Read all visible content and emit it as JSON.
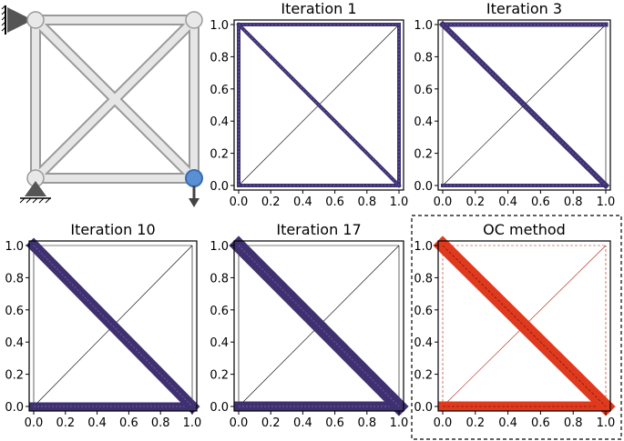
{
  "figure": {
    "colors": {
      "iteration_member": "#3f3170",
      "oc_member": "#e03a1e",
      "oc_frame": "#b02010",
      "frame_line": "#000000",
      "truss_tube": "#d9d9d9",
      "support": "#555555",
      "load_node": "#4a7fc8",
      "load_arrow": "#444444"
    },
    "schematic": {
      "description_icon": "truss-schematic-icon",
      "nodes": [
        [
          0,
          0
        ],
        [
          1,
          0
        ],
        [
          0,
          1
        ],
        [
          1,
          1
        ]
      ],
      "members": [
        [
          0,
          1
        ],
        [
          2,
          3
        ],
        [
          0,
          2
        ],
        [
          1,
          3
        ],
        [
          0,
          3
        ],
        [
          2,
          1
        ]
      ],
      "supports": [
        "wall-pin-top-left",
        "roller-bottom-left"
      ],
      "load_node": 1,
      "load_direction": "down"
    }
  },
  "chart_data": [
    {
      "type": "truss-topology",
      "title": "Iteration 1",
      "xlim": [
        0.0,
        1.0
      ],
      "ylim": [
        0.0,
        1.0
      ],
      "xticks": [
        "0.0",
        "0.2",
        "0.4",
        "0.6",
        "0.8",
        "1.0"
      ],
      "yticks": [
        "0.0",
        "0.2",
        "0.4",
        "0.6",
        "0.8",
        "1.0"
      ],
      "members": [
        {
          "name": "bottom",
          "from": [
            0,
            0
          ],
          "to": [
            1,
            0
          ],
          "thickness": 4
        },
        {
          "name": "top",
          "from": [
            0,
            1
          ],
          "to": [
            1,
            1
          ],
          "thickness": 4
        },
        {
          "name": "left",
          "from": [
            0,
            0
          ],
          "to": [
            0,
            1
          ],
          "thickness": 4
        },
        {
          "name": "right",
          "from": [
            1,
            0
          ],
          "to": [
            1,
            1
          ],
          "thickness": 4
        },
        {
          "name": "diag-down",
          "from": [
            0,
            1
          ],
          "to": [
            1,
            0
          ],
          "thickness": 4
        },
        {
          "name": "diag-up",
          "from": [
            0,
            0
          ],
          "to": [
            1,
            1
          ],
          "thickness": 0
        }
      ],
      "highlighted": false
    },
    {
      "type": "truss-topology",
      "title": "Iteration 3",
      "xlim": [
        0.0,
        1.0
      ],
      "ylim": [
        0.0,
        1.0
      ],
      "xticks": [
        "0.0",
        "0.2",
        "0.4",
        "0.6",
        "0.8",
        "1.0"
      ],
      "yticks": [
        "0.0",
        "0.2",
        "0.4",
        "0.6",
        "0.8",
        "1.0"
      ],
      "members": [
        {
          "name": "bottom",
          "from": [
            0,
            0
          ],
          "to": [
            1,
            0
          ],
          "thickness": 4
        },
        {
          "name": "top",
          "from": [
            0,
            1
          ],
          "to": [
            1,
            1
          ],
          "thickness": 5
        },
        {
          "name": "left",
          "from": [
            0,
            0
          ],
          "to": [
            0,
            1
          ],
          "thickness": 0
        },
        {
          "name": "right",
          "from": [
            1,
            0
          ],
          "to": [
            1,
            1
          ],
          "thickness": 0
        },
        {
          "name": "diag-down",
          "from": [
            0,
            1
          ],
          "to": [
            1,
            0
          ],
          "thickness": 6
        },
        {
          "name": "diag-up",
          "from": [
            0,
            0
          ],
          "to": [
            1,
            1
          ],
          "thickness": 0
        }
      ],
      "highlighted": false
    },
    {
      "type": "truss-topology",
      "title": "Iteration 10",
      "xlim": [
        0.0,
        1.0
      ],
      "ylim": [
        0.0,
        1.0
      ],
      "xticks": [
        "0.0",
        "0.2",
        "0.4",
        "0.6",
        "0.8",
        "1.0"
      ],
      "yticks": [
        "0.0",
        "0.2",
        "0.4",
        "0.6",
        "0.8",
        "1.0"
      ],
      "members": [
        {
          "name": "bottom",
          "from": [
            0,
            0
          ],
          "to": [
            1,
            0
          ],
          "thickness": 9
        },
        {
          "name": "top",
          "from": [
            0,
            1
          ],
          "to": [
            1,
            1
          ],
          "thickness": 0
        },
        {
          "name": "left",
          "from": [
            0,
            0
          ],
          "to": [
            0,
            1
          ],
          "thickness": 0
        },
        {
          "name": "right",
          "from": [
            1,
            0
          ],
          "to": [
            1,
            1
          ],
          "thickness": 0
        },
        {
          "name": "diag-down",
          "from": [
            0,
            1
          ],
          "to": [
            1,
            0
          ],
          "thickness": 12
        },
        {
          "name": "diag-up",
          "from": [
            0,
            0
          ],
          "to": [
            1,
            1
          ],
          "thickness": 0
        }
      ],
      "highlighted": false
    },
    {
      "type": "truss-topology",
      "title": "Iteration 17",
      "xlim": [
        0.0,
        1.0
      ],
      "ylim": [
        0.0,
        1.0
      ],
      "xticks": [
        "0.0",
        "0.2",
        "0.4",
        "0.6",
        "0.8",
        "1.0"
      ],
      "yticks": [
        "0.0",
        "0.2",
        "0.4",
        "0.6",
        "0.8",
        "1.0"
      ],
      "members": [
        {
          "name": "bottom",
          "from": [
            0,
            0
          ],
          "to": [
            1,
            0
          ],
          "thickness": 11
        },
        {
          "name": "top",
          "from": [
            0,
            1
          ],
          "to": [
            1,
            1
          ],
          "thickness": 0
        },
        {
          "name": "left",
          "from": [
            0,
            0
          ],
          "to": [
            0,
            1
          ],
          "thickness": 0
        },
        {
          "name": "right",
          "from": [
            1,
            0
          ],
          "to": [
            1,
            1
          ],
          "thickness": 0
        },
        {
          "name": "diag-down",
          "from": [
            0,
            1
          ],
          "to": [
            1,
            0
          ],
          "thickness": 15
        },
        {
          "name": "diag-up",
          "from": [
            0,
            0
          ],
          "to": [
            1,
            1
          ],
          "thickness": 0
        }
      ],
      "highlighted": false
    },
    {
      "type": "truss-topology",
      "title": "OC method",
      "xlim": [
        0.0,
        1.0
      ],
      "ylim": [
        0.0,
        1.0
      ],
      "xticks": [
        "0.0",
        "0.2",
        "0.4",
        "0.6",
        "0.8",
        "1.0"
      ],
      "yticks": [
        "0.0",
        "0.2",
        "0.4",
        "0.6",
        "0.8",
        "1.0"
      ],
      "members": [
        {
          "name": "bottom",
          "from": [
            0,
            0
          ],
          "to": [
            1,
            0
          ],
          "thickness": 11
        },
        {
          "name": "top",
          "from": [
            0,
            1
          ],
          "to": [
            1,
            1
          ],
          "thickness": 0
        },
        {
          "name": "left",
          "from": [
            0,
            0
          ],
          "to": [
            0,
            1
          ],
          "thickness": 0
        },
        {
          "name": "right",
          "from": [
            1,
            0
          ],
          "to": [
            1,
            1
          ],
          "thickness": 0
        },
        {
          "name": "diag-down",
          "from": [
            0,
            1
          ],
          "to": [
            1,
            0
          ],
          "thickness": 15
        },
        {
          "name": "diag-up",
          "from": [
            0,
            0
          ],
          "to": [
            1,
            1
          ],
          "thickness": 0
        }
      ],
      "highlighted": true
    }
  ]
}
